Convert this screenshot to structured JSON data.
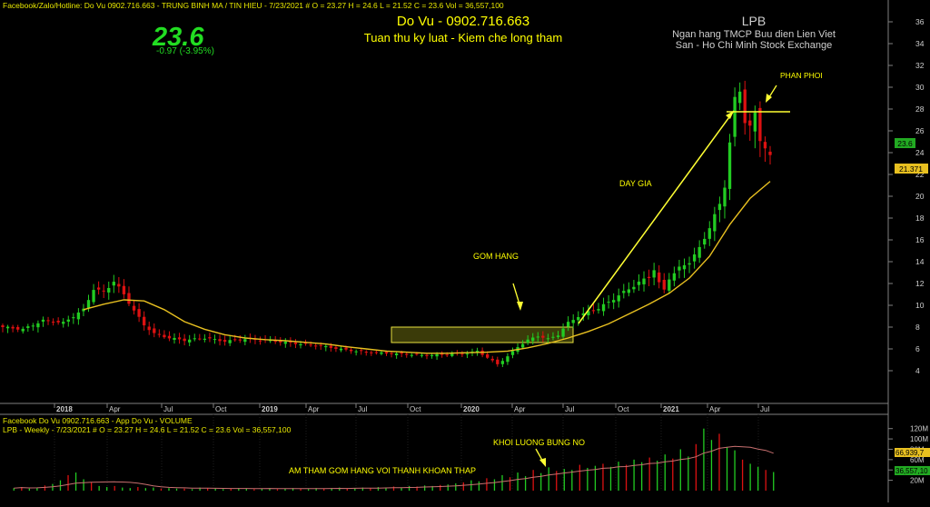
{
  "header": {
    "line1": "Facebook/Zalo/Hotline: Do Vu 0902.716.663 - TRUNG BINH MA / TIN HIEU  - 7/23/2021  #   O = 23.27  H = 24.6  L = 21.52  C = 23.6  Vol = 36,557,100",
    "price_big": "23.6",
    "price_change": "-0.97  (-3.95%)",
    "author": "Do Vu - 0902.716.663",
    "motto": "Tuan thu ky luat - Kiem che long tham",
    "symbol": "LPB",
    "company": "Ngan hang TMCP Buu dien Lien Viet",
    "exchange": "San - Ho Chi Minh Stock Exchange"
  },
  "volume_header": {
    "line1": "Facebook Do Vu 0902.716.663 - App Do Vu - VOLUME",
    "line2": "LPB - Weekly  - 7/23/2021  #   O = 23.27  H = 24.6  L = 21.52  C = 23.6  Vol = 36,557,100"
  },
  "annotations": {
    "gom_hang": "GOM HANG",
    "day_gia": "DAY GIA",
    "phan_phoi": "PHAN PHOI",
    "khoi_luong": "KHOI LUONG BUNG NO",
    "am_tham": "AM THAM GOM HANG VOI THANH KHOAN THAP"
  },
  "colors": {
    "up": "#22cc22",
    "down": "#dd1111",
    "ma": "#e8c020",
    "annotation": "#ffff00",
    "axis_text": "#cfcfcf"
  },
  "chart_data": {
    "type": "candlestick",
    "interval": "weekly",
    "price_axis": {
      "min": 2,
      "max": 37,
      "ticks": [
        4,
        6,
        8,
        10,
        12,
        14,
        16,
        18,
        20,
        22,
        24,
        26,
        28,
        30,
        32,
        34,
        36
      ]
    },
    "volume_axis": {
      "ticks": [
        "120M",
        "100M",
        "80M",
        "60M",
        "40M",
        "20M"
      ]
    },
    "x_tick_labels": [
      "2018",
      "Apr",
      "Jul",
      "Oct",
      "2019",
      "Apr",
      "Jul",
      "Oct",
      "2020",
      "Apr",
      "Jul",
      "Oct",
      "2021",
      "Apr",
      "Jul"
    ],
    "last_price_label": "23.6",
    "ma_label": "21.371",
    "volume_last_label": "36,557,10",
    "volume_ma_label": "66,939,7",
    "close_points": [
      [
        0,
        8.0
      ],
      [
        4,
        7.8
      ],
      [
        8,
        8.6
      ],
      [
        12,
        8.4
      ],
      [
        16,
        9.6
      ],
      [
        18,
        11.5
      ],
      [
        20,
        11.2
      ],
      [
        22,
        12.2
      ],
      [
        24,
        11.0
      ],
      [
        26,
        9.5
      ],
      [
        28,
        8.2
      ],
      [
        30,
        7.4
      ],
      [
        33,
        7.0
      ],
      [
        36,
        6.8
      ],
      [
        40,
        7.0
      ],
      [
        44,
        6.7
      ],
      [
        48,
        6.9
      ],
      [
        52,
        6.8
      ],
      [
        56,
        6.6
      ],
      [
        60,
        6.4
      ],
      [
        64,
        6.2
      ],
      [
        68,
        5.9
      ],
      [
        72,
        5.7
      ],
      [
        76,
        5.6
      ],
      [
        80,
        5.5
      ],
      [
        84,
        5.4
      ],
      [
        88,
        5.5
      ],
      [
        92,
        5.6
      ],
      [
        94,
        5.8
      ],
      [
        96,
        5.2
      ],
      [
        98,
        4.6
      ],
      [
        100,
        5.3
      ],
      [
        102,
        6.2
      ],
      [
        104,
        6.8
      ],
      [
        106,
        7.2
      ],
      [
        108,
        6.9
      ],
      [
        110,
        7.3
      ],
      [
        112,
        8.4
      ],
      [
        114,
        9.0
      ],
      [
        116,
        9.4
      ],
      [
        118,
        9.7
      ],
      [
        120,
        10.3
      ],
      [
        122,
        10.9
      ],
      [
        124,
        11.5
      ],
      [
        126,
        12.1
      ],
      [
        128,
        12.6
      ],
      [
        129,
        13.3
      ],
      [
        130,
        12.0
      ],
      [
        131,
        11.4
      ],
      [
        132,
        12.5
      ],
      [
        134,
        13.4
      ],
      [
        136,
        14.0
      ],
      [
        138,
        15.2
      ],
      [
        140,
        17.2
      ],
      [
        142,
        19.2
      ],
      [
        143,
        21.0
      ],
      [
        144,
        25.0
      ],
      [
        145,
        28.8
      ],
      [
        146,
        29.6
      ],
      [
        147,
        27.0
      ],
      [
        148,
        26.4
      ],
      [
        149,
        27.4
      ],
      [
        150,
        25.2
      ],
      [
        151,
        24.6
      ],
      [
        152,
        23.6
      ]
    ],
    "ma_points": [
      [
        16,
        9.6
      ],
      [
        20,
        10.1
      ],
      [
        24,
        10.5
      ],
      [
        28,
        10.4
      ],
      [
        32,
        9.6
      ],
      [
        36,
        8.5
      ],
      [
        40,
        7.8
      ],
      [
        44,
        7.3
      ],
      [
        48,
        7.0
      ],
      [
        52,
        6.85
      ],
      [
        56,
        6.75
      ],
      [
        60,
        6.6
      ],
      [
        64,
        6.45
      ],
      [
        68,
        6.2
      ],
      [
        72,
        6.0
      ],
      [
        76,
        5.8
      ],
      [
        80,
        5.7
      ],
      [
        84,
        5.6
      ],
      [
        88,
        5.6
      ],
      [
        92,
        5.65
      ],
      [
        96,
        5.7
      ],
      [
        100,
        5.8
      ],
      [
        104,
        6.1
      ],
      [
        108,
        6.5
      ],
      [
        112,
        7.0
      ],
      [
        116,
        7.6
      ],
      [
        120,
        8.3
      ],
      [
        124,
        9.2
      ],
      [
        128,
        10.1
      ],
      [
        132,
        11.1
      ],
      [
        136,
        12.5
      ],
      [
        140,
        14.5
      ],
      [
        144,
        17.4
      ],
      [
        148,
        19.8
      ],
      [
        152,
        21.37
      ]
    ],
    "volume_bars": [
      5,
      7,
      4,
      6,
      10,
      13,
      20,
      30,
      35,
      22,
      16,
      9,
      7,
      9,
      6,
      5,
      7,
      5,
      6,
      4,
      5,
      4,
      4,
      3,
      6,
      5,
      4,
      3,
      4,
      5,
      4,
      3,
      4,
      5,
      3,
      4,
      5,
      4,
      3,
      5,
      4,
      5,
      6,
      4,
      5,
      6,
      5,
      7,
      6,
      8,
      6,
      9,
      8,
      10,
      9,
      11,
      12,
      14,
      16,
      20,
      18,
      24,
      22,
      30,
      26,
      35,
      28,
      40,
      34,
      45,
      38,
      42,
      40,
      50,
      44,
      48,
      52,
      46,
      56,
      50,
      60,
      55,
      64,
      58,
      70,
      62,
      80,
      66,
      90,
      120,
      98,
      110,
      84,
      78,
      60,
      52,
      46,
      40,
      36
    ]
  }
}
